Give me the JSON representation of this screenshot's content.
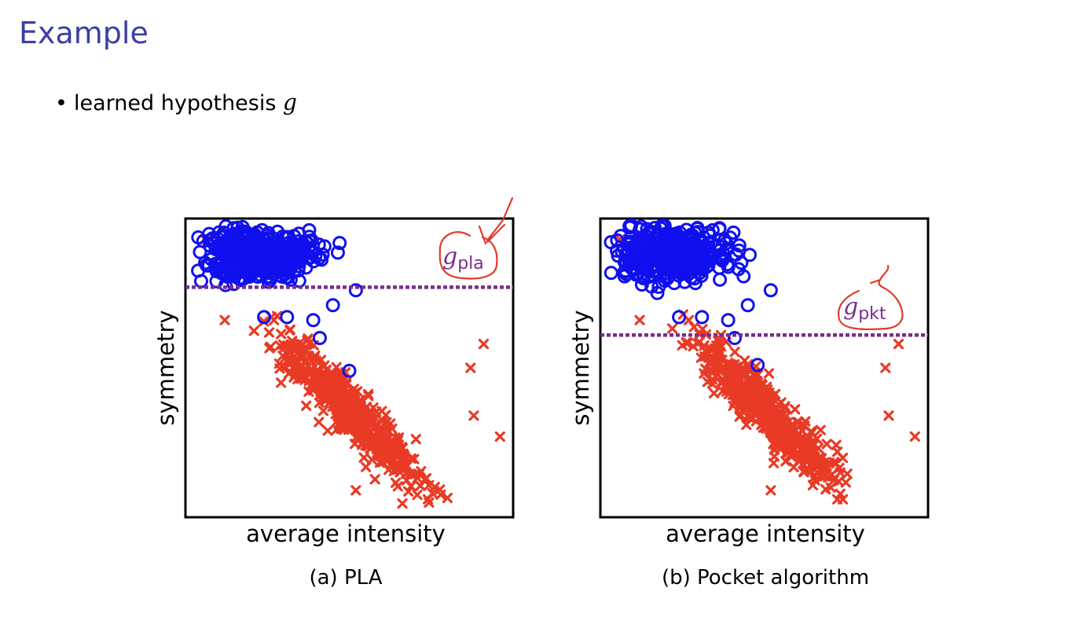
{
  "slide": {
    "title": "Example",
    "bullet": {
      "text": "learned hypothesis",
      "math_symbol": "g"
    },
    "colors": {
      "title": "#3b3fa6",
      "circle_class": "#1010ee",
      "cross_class": "#e83a25",
      "hypothesis_line": "#7b2d8e",
      "annotation": "#e03a2a"
    }
  },
  "chart_data": [
    {
      "type": "scatter",
      "caption": "(a) PLA",
      "xlabel": "average intensity",
      "ylabel": "symmetry",
      "xlim": [
        0,
        1
      ],
      "ylim": [
        0,
        1
      ],
      "grid": false,
      "hypothesis": {
        "label_main": "g",
        "label_sub": "pla",
        "y": 0.77,
        "style": "dotted"
      },
      "series": [
        {
          "marker": "circle",
          "cluster_center": [
            0.22,
            0.88
          ],
          "extra_points": [
            [
              0.52,
              0.76
            ],
            [
              0.45,
              0.71
            ],
            [
              0.39,
              0.66
            ],
            [
              0.41,
              0.6
            ],
            [
              0.5,
              0.49
            ],
            [
              0.24,
              0.67
            ],
            [
              0.31,
              0.67
            ]
          ]
        },
        {
          "marker": "x",
          "cluster_center": [
            0.5,
            0.36
          ],
          "extra_points": [
            [
              0.06,
              0.93
            ],
            [
              0.12,
              0.66
            ],
            [
              0.27,
              0.66
            ],
            [
              0.91,
              0.58
            ],
            [
              0.87,
              0.5
            ],
            [
              0.88,
              0.34
            ],
            [
              0.96,
              0.27
            ],
            [
              0.74,
              0.06
            ],
            [
              0.52,
              0.09
            ]
          ]
        }
      ]
    },
    {
      "type": "scatter",
      "caption": "(b) Pocket algorithm",
      "xlabel": "average intensity",
      "ylabel": "symmetry",
      "xlim": [
        0,
        1
      ],
      "ylim": [
        0,
        1
      ],
      "grid": false,
      "hypothesis": {
        "label_main": "g",
        "label_sub": "pkt",
        "y": 0.61,
        "style": "dotted"
      },
      "series": [
        {
          "marker": "circle",
          "cluster_center": [
            0.22,
            0.88
          ],
          "extra_points": [
            [
              0.52,
              0.76
            ],
            [
              0.45,
              0.71
            ],
            [
              0.39,
              0.66
            ],
            [
              0.41,
              0.6
            ],
            [
              0.48,
              0.51
            ],
            [
              0.24,
              0.67
            ],
            [
              0.31,
              0.67
            ]
          ]
        },
        {
          "marker": "x",
          "cluster_center": [
            0.5,
            0.36
          ],
          "extra_points": [
            [
              0.06,
              0.93
            ],
            [
              0.12,
              0.66
            ],
            [
              0.27,
              0.66
            ],
            [
              0.91,
              0.58
            ],
            [
              0.87,
              0.5
            ],
            [
              0.88,
              0.34
            ],
            [
              0.96,
              0.27
            ],
            [
              0.74,
              0.06
            ],
            [
              0.52,
              0.09
            ]
          ]
        }
      ]
    }
  ]
}
